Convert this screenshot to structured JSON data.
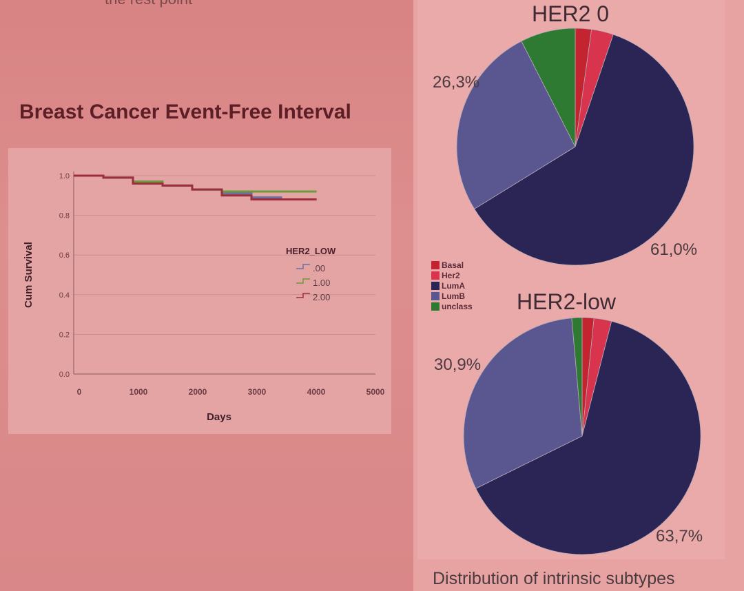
{
  "header_fragment": "the rest point",
  "chart_data": [
    {
      "type": "line",
      "title": "Breast Cancer Event-Free Interval",
      "xlabel": "Days",
      "ylabel": "Cum Survival",
      "xlim": [
        0,
        5000
      ],
      "ylim": [
        0.0,
        1.0
      ],
      "x_ticks": [
        0,
        1000,
        2000,
        3000,
        4000,
        5000
      ],
      "y_ticks": [
        "0.0",
        "0.2",
        "0.4",
        "0.6",
        "0.8",
        "1.0"
      ],
      "grid": true,
      "legend_title": "HER2_LOW",
      "legend_position": "right",
      "series": [
        {
          "name": ".00",
          "color": "#6d6fa0",
          "x": [
            0,
            500,
            1000,
            1500,
            2000,
            2500,
            3000,
            3500,
            4000,
            4100
          ],
          "y": [
            1.0,
            0.99,
            0.97,
            0.95,
            0.93,
            0.91,
            0.89,
            0.88,
            0.88,
            0.88
          ]
        },
        {
          "name": "1.00",
          "color": "#6b9a3c",
          "x": [
            0,
            500,
            1000,
            1500,
            2000,
            2500,
            3000,
            3500,
            4000,
            4100
          ],
          "y": [
            1.0,
            0.99,
            0.97,
            0.95,
            0.93,
            0.92,
            0.92,
            0.92,
            0.92,
            0.92
          ]
        },
        {
          "name": "2.00",
          "color": "#9b2e3a",
          "x": [
            0,
            500,
            1000,
            1500,
            2000,
            2500,
            3000,
            3500,
            4000,
            4100
          ],
          "y": [
            1.0,
            0.99,
            0.96,
            0.95,
            0.93,
            0.9,
            0.88,
            0.88,
            0.88,
            0.88
          ]
        }
      ]
    },
    {
      "type": "pie",
      "title": "HER2 0",
      "categories": [
        "Basal",
        "Her2",
        "LumA",
        "LumB",
        "unclass"
      ],
      "values": [
        2.2,
        3.0,
        61.0,
        26.3,
        7.5
      ],
      "colors": [
        "#c42430",
        "#d8344e",
        "#2a2554",
        "#5a5790",
        "#2f7a33"
      ],
      "labels_shown": {
        "LumB": "26,3%",
        "LumA": "61,0%"
      }
    },
    {
      "type": "pie",
      "title": "HER2-low",
      "categories": [
        "Basal",
        "Her2",
        "LumA",
        "LumB",
        "unclass"
      ],
      "values": [
        1.6,
        2.4,
        63.7,
        30.9,
        1.4
      ],
      "colors": [
        "#c42430",
        "#d8344e",
        "#2a2554",
        "#5a5790",
        "#2f7a33"
      ],
      "labels_shown": {
        "LumB": "30,9%",
        "LumA": "63,7%"
      }
    }
  ],
  "legend": {
    "items": [
      {
        "label": "Basal",
        "color": "#c42430"
      },
      {
        "label": "Her2",
        "color": "#d8344e"
      },
      {
        "label": "LumA",
        "color": "#2a2554"
      },
      {
        "label": "LumB",
        "color": "#5a5790"
      },
      {
        "label": "unclass",
        "color": "#2f7a33"
      }
    ]
  },
  "footer": "Distribution of intrinsic subtypes"
}
